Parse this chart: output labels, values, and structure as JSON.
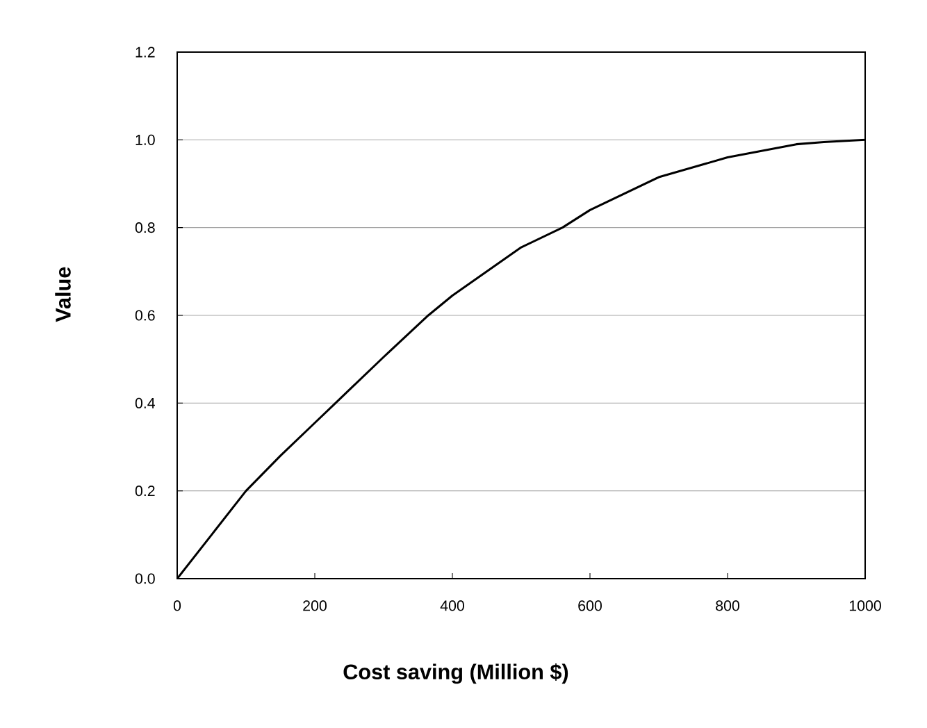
{
  "chart_data": {
    "type": "line",
    "xlabel": "Cost saving (Million $)",
    "ylabel": "Value",
    "x": [
      0,
      50,
      100,
      150,
      200,
      230,
      300,
      365,
      400,
      500,
      560,
      600,
      700,
      800,
      900,
      940,
      1000
    ],
    "series": [
      {
        "color": "#000000",
        "values": [
          0,
          0.1,
          0.2,
          0.28,
          0.355,
          0.4,
          0.505,
          0.6,
          0.645,
          0.755,
          0.8,
          0.84,
          0.915,
          0.96,
          0.99,
          0.995,
          1.0
        ]
      }
    ],
    "xlim": [
      0,
      1000
    ],
    "ylim": [
      0,
      1.2
    ],
    "xticks": [
      0,
      200,
      400,
      600,
      800,
      1000
    ],
    "yticks": [
      {
        "value": 0,
        "label": "0.0"
      },
      0.2,
      0.4,
      0.6,
      0.8,
      {
        "value": 1,
        "label": "1.0"
      },
      1.2
    ],
    "grid": "y",
    "marker": "none",
    "line_style": "solid"
  }
}
